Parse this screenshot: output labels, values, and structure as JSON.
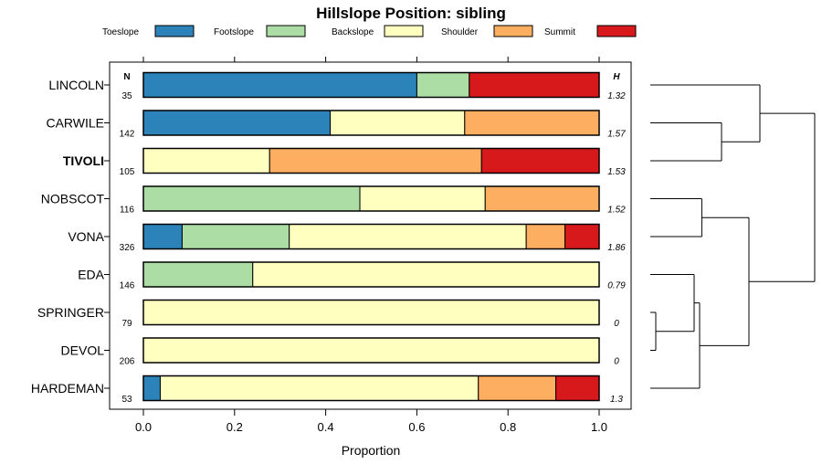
{
  "chart_data": {
    "type": "bar",
    "stacked": true,
    "orientation": "horizontal",
    "title": "Hillslope Position: sibling",
    "xlabel": "Proportion",
    "ylabel": "",
    "xlim": [
      0,
      1
    ],
    "x_ticks": [
      "0.0",
      "0.2",
      "0.4",
      "0.6",
      "0.8",
      "1.0"
    ],
    "n_header": "N",
    "h_header": "H",
    "highlight_category": "TIVOLI",
    "legend_position": "top",
    "legend": [
      {
        "name": "Toeslope",
        "color": "#2b83ba"
      },
      {
        "name": "Footslope",
        "color": "#abdda4"
      },
      {
        "name": "Backslope",
        "color": "#ffffbf"
      },
      {
        "name": "Shoulder",
        "color": "#fdae61"
      },
      {
        "name": "Summit",
        "color": "#d7191c"
      }
    ],
    "categories": [
      "LINCOLN",
      "CARWILE",
      "TIVOLI",
      "NOBSCOT",
      "VONA",
      "EDA",
      "SPRINGER",
      "DEVOL",
      "HARDEMAN"
    ],
    "n": [
      "35",
      "142",
      "105",
      "116",
      "326",
      "146",
      "79",
      "206",
      "53"
    ],
    "h": [
      "1.32",
      "1.57",
      "1.53",
      "1.52",
      "1.86",
      "0.79",
      "0",
      "0",
      "1.3"
    ],
    "series": [
      {
        "name": "Toeslope",
        "values": [
          0.6,
          0.41,
          0.0,
          0.0,
          0.085,
          0.0,
          0.0,
          0.0,
          0.037
        ]
      },
      {
        "name": "Footslope",
        "values": [
          0.115,
          0.0,
          0.0,
          0.475,
          0.235,
          0.24,
          0.0,
          0.0,
          0.0
        ]
      },
      {
        "name": "Backslope",
        "values": [
          0.0,
          0.295,
          0.277,
          0.275,
          0.52,
          0.76,
          1.0,
          1.0,
          0.698
        ]
      },
      {
        "name": "Shoulder",
        "values": [
          0.0,
          0.295,
          0.465,
          0.25,
          0.085,
          0.0,
          0.0,
          0.0,
          0.17
        ]
      },
      {
        "name": "Summit",
        "values": [
          0.285,
          0.0,
          0.258,
          0.0,
          0.075,
          0.0,
          0.0,
          0.0,
          0.095
        ]
      }
    ],
    "dendrogram": {
      "leaf_order": [
        "LINCOLN",
        "CARWILE",
        "TIVOLI",
        "NOBSCOT",
        "VONA",
        "EDA",
        "SPRINGER",
        "DEVOL",
        "HARDEMAN"
      ],
      "merges": [
        {
          "id": "m1",
          "left": "SPRINGER",
          "right": "DEVOL",
          "height": 0.05
        },
        {
          "id": "m2",
          "left": "EDA",
          "right": "m1",
          "height": 0.4
        },
        {
          "id": "m3",
          "left": "m2",
          "right": "HARDEMAN",
          "height": 0.45
        },
        {
          "id": "m4",
          "left": "NOBSCOT",
          "right": "VONA",
          "height": 0.47
        },
        {
          "id": "m5",
          "left": "CARWILE",
          "right": "TIVOLI",
          "height": 0.65
        },
        {
          "id": "m6",
          "left": "m4",
          "right": "m3",
          "height": 0.9
        },
        {
          "id": "m7",
          "left": "LINCOLN",
          "right": "m5",
          "height": 1.0
        },
        {
          "id": "m8",
          "left": "m7",
          "right": "m6",
          "height": 1.5
        }
      ]
    }
  }
}
